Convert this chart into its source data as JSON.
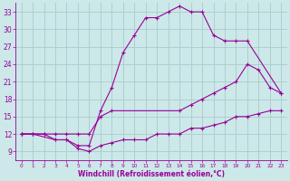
{
  "background_color": "#cce8e8",
  "grid_color": "#aacccc",
  "line_color": "#990099",
  "marker_color": "#990099",
  "xlabel": "Windchill (Refroidissement éolien,°C)",
  "xlabel_color": "#990099",
  "tick_color": "#990099",
  "xlim": [
    -0.5,
    23.5
  ],
  "ylim": [
    7.5,
    34.5
  ],
  "xticks": [
    0,
    1,
    2,
    3,
    4,
    5,
    6,
    7,
    8,
    9,
    10,
    11,
    12,
    13,
    14,
    15,
    16,
    17,
    18,
    19,
    20,
    21,
    22,
    23
  ],
  "yticks": [
    9,
    12,
    15,
    18,
    21,
    24,
    27,
    30,
    33
  ],
  "curve1_x": [
    0,
    1,
    3,
    4,
    5,
    6,
    7,
    8,
    9,
    10,
    11,
    12,
    13,
    14,
    15,
    16,
    17,
    18,
    19,
    20,
    23
  ],
  "curve1_y": [
    12,
    12,
    11,
    11,
    10,
    10,
    16,
    20,
    26,
    29,
    32,
    32,
    33,
    34,
    33,
    33,
    29,
    28,
    28,
    28,
    19
  ],
  "curve2_x": [
    0,
    1,
    2,
    3,
    4,
    5,
    6,
    7,
    8,
    14,
    15,
    16,
    17,
    18,
    19,
    20,
    21,
    22,
    23
  ],
  "curve2_y": [
    12,
    12,
    12,
    12,
    12,
    12,
    12,
    15,
    16,
    16,
    17,
    18,
    19,
    20,
    21,
    24,
    23,
    20,
    19
  ],
  "curve3_x": [
    0,
    1,
    2,
    3,
    4,
    5,
    6,
    7,
    8,
    9,
    10,
    11,
    12,
    13,
    14,
    15,
    16,
    17,
    18,
    19,
    20,
    21,
    22,
    23
  ],
  "curve3_y": [
    12,
    12,
    12,
    11,
    11,
    9.5,
    9,
    10,
    10.5,
    11,
    11,
    11,
    12,
    12,
    12,
    13,
    13,
    13.5,
    14,
    15,
    15,
    15.5,
    16,
    16
  ]
}
